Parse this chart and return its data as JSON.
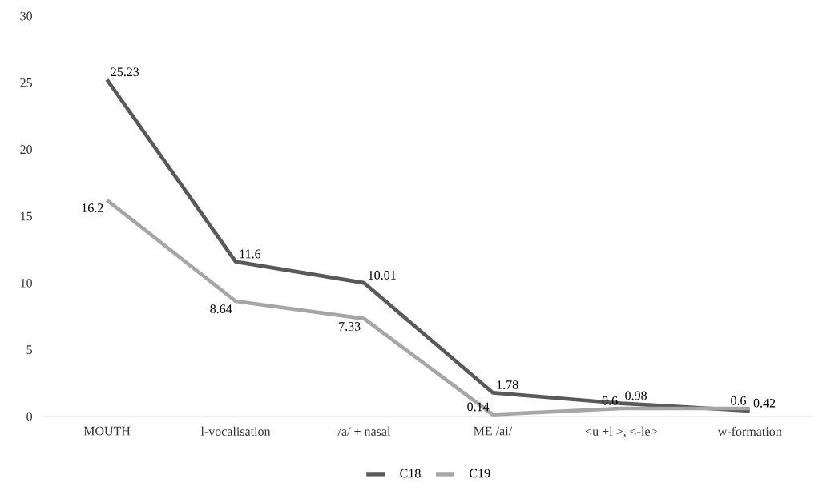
{
  "chart_data": {
    "type": "line",
    "categories": [
      "MOUTH",
      "l-vocalisation",
      "/a/ + nasal",
      "ME /ai/",
      "<u +l >, <-le>",
      "w-formation"
    ],
    "series": [
      {
        "name": "C18",
        "color": "#595959",
        "values": [
          25.23,
          11.6,
          10.01,
          1.78,
          0.98,
          0.42
        ]
      },
      {
        "name": "C19",
        "color": "#a6a6a6",
        "values": [
          16.2,
          8.64,
          7.33,
          0.14,
          0.6,
          0.6
        ]
      }
    ],
    "ylim": [
      0,
      30
    ],
    "yticks": [
      0,
      5,
      10,
      15,
      20,
      25,
      30
    ],
    "grid": false,
    "legend": "bottom",
    "data_labels": true,
    "marker": "none",
    "line_style": "solid"
  }
}
